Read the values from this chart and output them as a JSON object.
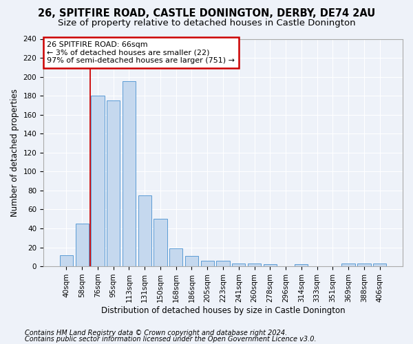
{
  "title_line1": "26, SPITFIRE ROAD, CASTLE DONINGTON, DERBY, DE74 2AU",
  "title_line2": "Size of property relative to detached houses in Castle Donington",
  "xlabel": "Distribution of detached houses by size in Castle Donington",
  "ylabel": "Number of detached properties",
  "footnote1": "Contains HM Land Registry data © Crown copyright and database right 2024.",
  "footnote2": "Contains public sector information licensed under the Open Government Licence v3.0.",
  "bar_labels": [
    "40sqm",
    "58sqm",
    "76sqm",
    "95sqm",
    "113sqm",
    "131sqm",
    "150sqm",
    "168sqm",
    "186sqm",
    "205sqm",
    "223sqm",
    "241sqm",
    "260sqm",
    "278sqm",
    "296sqm",
    "314sqm",
    "333sqm",
    "351sqm",
    "369sqm",
    "388sqm",
    "406sqm"
  ],
  "bar_values": [
    12,
    45,
    180,
    175,
    195,
    75,
    50,
    19,
    11,
    6,
    6,
    3,
    3,
    2,
    0,
    2,
    0,
    0,
    3,
    3,
    3
  ],
  "bar_color": "#c5d8ee",
  "bar_edge_color": "#5b9bd5",
  "vline_x": 1.5,
  "annotation_text": "26 SPITFIRE ROAD: 66sqm\n← 3% of detached houses are smaller (22)\n97% of semi-detached houses are larger (751) →",
  "annotation_box_color": "#ffffff",
  "annotation_box_edge": "#cc0000",
  "vline_color": "#cc0000",
  "bg_color": "#eef2f9",
  "ylim": [
    0,
    240
  ],
  "yticks": [
    0,
    20,
    40,
    60,
    80,
    100,
    120,
    140,
    160,
    180,
    200,
    220,
    240
  ],
  "grid_color": "#ffffff",
  "title1_fontsize": 10.5,
  "title2_fontsize": 9.5,
  "xlabel_fontsize": 8.5,
  "ylabel_fontsize": 8.5,
  "tick_fontsize": 7.5,
  "footnote_fontsize": 7,
  "annot_fontsize": 8
}
